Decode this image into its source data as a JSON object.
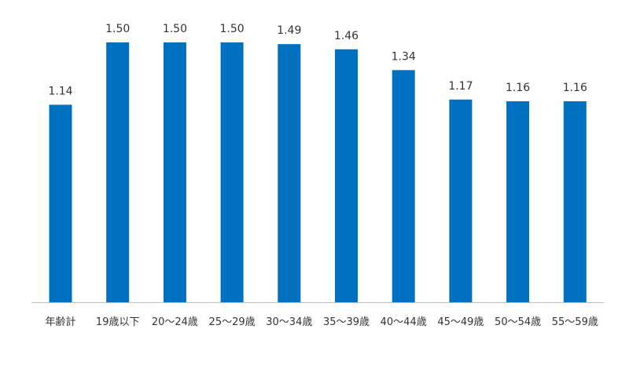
{
  "chart_data": {
    "type": "bar",
    "title": "",
    "xlabel": "",
    "ylabel": "",
    "categories": [
      "年齢計",
      "19歳以下",
      "20～24歳",
      "25～29歳",
      "30～34歳",
      "35～39歳",
      "40～44歳",
      "45～49歳",
      "50～54歳",
      "55～59歳"
    ],
    "values": [
      1.14,
      1.5,
      1.5,
      1.5,
      1.49,
      1.46,
      1.34,
      1.17,
      1.16,
      1.16
    ],
    "value_labels": [
      "1.14",
      "1.50",
      "1.50",
      "1.50",
      "1.49",
      "1.46",
      "1.34",
      "1.17",
      "1.16",
      "1.16"
    ],
    "ylim": [
      0,
      1.5
    ],
    "grid": false,
    "bar_color": "#0070c0",
    "axis_color": "#bfbfbf"
  }
}
